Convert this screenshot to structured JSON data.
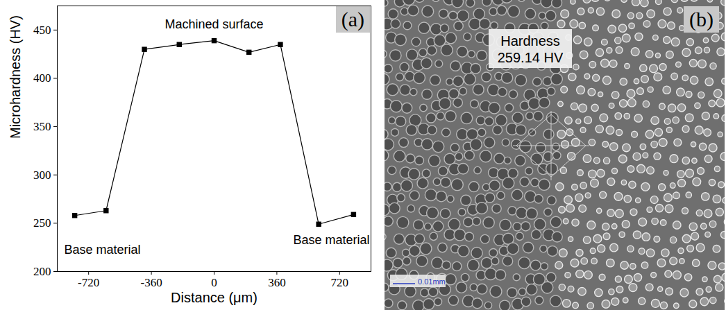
{
  "chart_data": {
    "type": "line",
    "title": "(a)",
    "x_label": "Distance (μm)",
    "y_label": "Microhardness (HV)",
    "x": [
      -800,
      -620,
      -400,
      -200,
      0,
      200,
      380,
      600,
      800
    ],
    "values": [
      258,
      263,
      430,
      435,
      439,
      427,
      435,
      249,
      259
    ],
    "color": "#000000",
    "marker": "square",
    "line_style": "solid",
    "xlim": [
      -900,
      900
    ],
    "xticks": [
      -720,
      -360,
      0,
      360,
      720
    ],
    "ylim": [
      200,
      475
    ],
    "yticks": [
      200,
      250,
      300,
      350,
      400,
      450
    ],
    "grid": false,
    "annotations": [
      "Machined surface",
      "Base material",
      "Base material"
    ]
  },
  "image_panel": {
    "label": "(b)",
    "annotation": [
      "Hardness",
      "259.14 HV"
    ],
    "scale_bar": "0.01mm"
  }
}
